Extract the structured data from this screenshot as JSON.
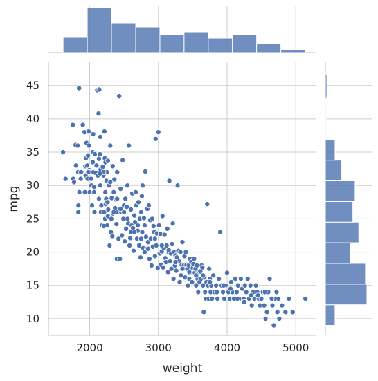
{
  "chart_data": {
    "type": "scatter",
    "title": "",
    "xlabel": "weight",
    "ylabel": "mpg",
    "xlim": [
      1400,
      5300
    ],
    "ylim": [
      7.5,
      48.5
    ],
    "xticks": [
      "2000",
      "3000",
      "4000",
      "5000"
    ],
    "yticks": [
      "10",
      "15",
      "20",
      "25",
      "30",
      "35",
      "40",
      "45"
    ],
    "grid": true,
    "colors": {
      "marker": "#4c72b0",
      "bar": "#4c72b0"
    },
    "marginal_x_histogram": {
      "bin_edges": [
        1613,
        1965,
        2317,
        2670,
        3022,
        3374,
        3726,
        4078,
        4430,
        4782,
        5140
      ],
      "counts": [
        22,
        65,
        43,
        37,
        26,
        29,
        21,
        26,
        13,
        4
      ]
    },
    "marginal_y_histogram": {
      "bin_edges": [
        9,
        12.1,
        15.2,
        18.3,
        21.4,
        24.5,
        27.6,
        30.7,
        33.8,
        36.9,
        40.0,
        43.1,
        46.6
      ],
      "counts": [
        13,
        56,
        54,
        34,
        45,
        37,
        40,
        22,
        13,
        1,
        1,
        2
      ]
    },
    "points": [
      [
        1613,
        35
      ],
      [
        1649,
        31
      ],
      [
        1755,
        39.1
      ],
      [
        1760,
        31
      ],
      [
        1773,
        30.5
      ],
      [
        1795,
        36.1
      ],
      [
        1800,
        33
      ],
      [
        1825,
        36
      ],
      [
        1834,
        32
      ],
      [
        1835,
        26
      ],
      [
        1836,
        27
      ],
      [
        1845,
        44.6
      ],
      [
        1850,
        29
      ],
      [
        1870,
        31
      ],
      [
        1875,
        32
      ],
      [
        1900,
        39.1
      ],
      [
        1925,
        38
      ],
      [
        1930,
        29
      ],
      [
        1937,
        32.9
      ],
      [
        1940,
        31.5
      ],
      [
        1945,
        34.1
      ],
      [
        1955,
        36.4
      ],
      [
        1965,
        33
      ],
      [
        1970,
        31
      ],
      [
        1975,
        34.5
      ],
      [
        1985,
        38.1
      ],
      [
        1990,
        36
      ],
      [
        1995,
        32.3
      ],
      [
        2000,
        29
      ],
      [
        2003,
        32
      ],
      [
        2020,
        31
      ],
      [
        2025,
        30
      ],
      [
        2035,
        27
      ],
      [
        2045,
        35
      ],
      [
        2050,
        37.7
      ],
      [
        2055,
        32
      ],
      [
        2065,
        29.8
      ],
      [
        2070,
        26
      ],
      [
        2075,
        34.7
      ],
      [
        2085,
        31.9
      ],
      [
        2100,
        33
      ],
      [
        2110,
        44.3
      ],
      [
        2120,
        31.5
      ],
      [
        2130,
        40.8
      ],
      [
        2135,
        28
      ],
      [
        2140,
        44.4
      ],
      [
        2145,
        30
      ],
      [
        2150,
        34.7
      ],
      [
        2155,
        37.3
      ],
      [
        2160,
        32.4
      ],
      [
        2164,
        26
      ],
      [
        2170,
        27
      ],
      [
        2180,
        24
      ],
      [
        2190,
        32.8
      ],
      [
        2200,
        31.5
      ],
      [
        2205,
        23.9
      ],
      [
        2210,
        26
      ],
      [
        2215,
        38.1
      ],
      [
        2220,
        34.1
      ],
      [
        2225,
        25
      ],
      [
        2228,
        29
      ],
      [
        2230,
        33.5
      ],
      [
        2234,
        27.2
      ],
      [
        2240,
        28
      ],
      [
        2245,
        30.7
      ],
      [
        2250,
        32
      ],
      [
        2255,
        24
      ],
      [
        2260,
        27.5
      ],
      [
        2265,
        25.4
      ],
      [
        2270,
        26.4
      ],
      [
        2280,
        30
      ],
      [
        2290,
        21
      ],
      [
        2300,
        36
      ],
      [
        2310,
        23
      ],
      [
        2315,
        25
      ],
      [
        2320,
        28.1
      ],
      [
        2330,
        22.4
      ],
      [
        2335,
        32.9
      ],
      [
        2340,
        25.8
      ],
      [
        2350,
        29
      ],
      [
        2360,
        30.9
      ],
      [
        2370,
        26.6
      ],
      [
        2380,
        27.9
      ],
      [
        2390,
        24.2
      ],
      [
        2395,
        19
      ],
      [
        2400,
        32
      ],
      [
        2410,
        26
      ],
      [
        2420,
        22
      ],
      [
        2430,
        43.4
      ],
      [
        2440,
        19
      ],
      [
        2450,
        29.5
      ],
      [
        2460,
        26
      ],
      [
        2470,
        22.5
      ],
      [
        2480,
        33.8
      ],
      [
        2490,
        25
      ],
      [
        2500,
        27
      ],
      [
        2510,
        21.6
      ],
      [
        2520,
        28
      ],
      [
        2530,
        23.5
      ],
      [
        2540,
        26.8
      ],
      [
        2550,
        30
      ],
      [
        2560,
        24.3
      ],
      [
        2570,
        36
      ],
      [
        2580,
        21
      ],
      [
        2590,
        22.1
      ],
      [
        2600,
        26.4
      ],
      [
        2610,
        24
      ],
      [
        2620,
        28.8
      ],
      [
        2630,
        23.6
      ],
      [
        2640,
        20.2
      ],
      [
        2650,
        25.5
      ],
      [
        2660,
        24.5
      ],
      [
        2670,
        29
      ],
      [
        2680,
        27
      ],
      [
        2690,
        22
      ],
      [
        2700,
        23.2
      ],
      [
        2710,
        27.5
      ],
      [
        2720,
        21
      ],
      [
        2730,
        25
      ],
      [
        2740,
        19.2
      ],
      [
        2750,
        26
      ],
      [
        2760,
        28.4
      ],
      [
        2765,
        23
      ],
      [
        2770,
        30
      ],
      [
        2780,
        20.6
      ],
      [
        2790,
        25.1
      ],
      [
        2800,
        24
      ],
      [
        2810,
        32.1
      ],
      [
        2820,
        22.3
      ],
      [
        2830,
        20.5
      ],
      [
        2840,
        26.5
      ],
      [
        2850,
        21.5
      ],
      [
        2860,
        27
      ],
      [
        2870,
        19
      ],
      [
        2880,
        24.8
      ],
      [
        2890,
        22
      ],
      [
        2900,
        18
      ],
      [
        2910,
        25
      ],
      [
        2920,
        20.8
      ],
      [
        2930,
        23.9
      ],
      [
        2940,
        23
      ],
      [
        2950,
        19.4
      ],
      [
        2960,
        37
      ],
      [
        2970,
        21
      ],
      [
        2980,
        22.8
      ],
      [
        2990,
        17.6
      ],
      [
        3000,
        38
      ],
      [
        3010,
        24
      ],
      [
        3020,
        19.8
      ],
      [
        3030,
        22.7
      ],
      [
        3040,
        18.1
      ],
      [
        3050,
        20.1
      ],
      [
        3060,
        25.4
      ],
      [
        3070,
        17.7
      ],
      [
        3080,
        20.6
      ],
      [
        3090,
        22.6
      ],
      [
        3100,
        19.1
      ],
      [
        3110,
        18.5
      ],
      [
        3120,
        21
      ],
      [
        3130,
        23.5
      ],
      [
        3140,
        17
      ],
      [
        3150,
        20
      ],
      [
        3160,
        30.7
      ],
      [
        3170,
        18.6
      ],
      [
        3180,
        19.8
      ],
      [
        3190,
        17.5
      ],
      [
        3200,
        21.2
      ],
      [
        3210,
        24.3
      ],
      [
        3220,
        16
      ],
      [
        3230,
        20
      ],
      [
        3240,
        18
      ],
      [
        3250,
        19.5
      ],
      [
        3260,
        17.2
      ],
      [
        3270,
        19.2
      ],
      [
        3280,
        30
      ],
      [
        3290,
        20.2
      ],
      [
        3300,
        18.6
      ],
      [
        3310,
        15.5
      ],
      [
        3320,
        20
      ],
      [
        3330,
        16.5
      ],
      [
        3340,
        18.1
      ],
      [
        3350,
        21.5
      ],
      [
        3360,
        17.6
      ],
      [
        3370,
        18
      ],
      [
        3380,
        19.4
      ],
      [
        3390,
        16.2
      ],
      [
        3400,
        20
      ],
      [
        3410,
        18.1
      ],
      [
        3420,
        17.5
      ],
      [
        3430,
        15
      ],
      [
        3440,
        18
      ],
      [
        3450,
        16
      ],
      [
        3460,
        19
      ],
      [
        3470,
        17
      ],
      [
        3480,
        18.5
      ],
      [
        3490,
        15.5
      ],
      [
        3500,
        17.6
      ],
      [
        3510,
        18.2
      ],
      [
        3520,
        19
      ],
      [
        3530,
        16.9
      ],
      [
        3540,
        17.5
      ],
      [
        3550,
        15
      ],
      [
        3560,
        18
      ],
      [
        3570,
        16
      ],
      [
        3580,
        14
      ],
      [
        3590,
        17
      ],
      [
        3600,
        15.5
      ],
      [
        3610,
        17.1
      ],
      [
        3620,
        16
      ],
      [
        3630,
        18
      ],
      [
        3640,
        17.7
      ],
      [
        3650,
        15
      ],
      [
        3660,
        11
      ],
      [
        3670,
        16.2
      ],
      [
        3680,
        14
      ],
      [
        3690,
        13
      ],
      [
        3700,
        15.5
      ],
      [
        3710,
        27.2
      ],
      [
        3720,
        15
      ],
      [
        3730,
        13
      ],
      [
        3740,
        17.5
      ],
      [
        3750,
        16
      ],
      [
        3760,
        14
      ],
      [
        3770,
        15
      ],
      [
        3780,
        13
      ],
      [
        3800,
        16.5
      ],
      [
        3820,
        14
      ],
      [
        3840,
        15
      ],
      [
        3860,
        13
      ],
      [
        3880,
        16
      ],
      [
        3900,
        23
      ],
      [
        3920,
        15
      ],
      [
        3940,
        14
      ],
      [
        3960,
        13
      ],
      [
        3980,
        15
      ],
      [
        4000,
        16.9
      ],
      [
        4020,
        14
      ],
      [
        4040,
        13
      ],
      [
        4060,
        15.5
      ],
      [
        4080,
        14
      ],
      [
        4100,
        13
      ],
      [
        4120,
        16
      ],
      [
        4140,
        14
      ],
      [
        4160,
        15
      ],
      [
        4180,
        13
      ],
      [
        4200,
        16
      ],
      [
        4220,
        14.5
      ],
      [
        4240,
        13
      ],
      [
        4260,
        15
      ],
      [
        4280,
        14
      ],
      [
        4300,
        16
      ],
      [
        4320,
        13
      ],
      [
        4340,
        15
      ],
      [
        4360,
        12
      ],
      [
        4380,
        14
      ],
      [
        4400,
        13
      ],
      [
        4420,
        15
      ],
      [
        4440,
        14
      ],
      [
        4460,
        13
      ],
      [
        4480,
        12
      ],
      [
        4499,
        13
      ],
      [
        4520,
        14
      ],
      [
        4540,
        12
      ],
      [
        4560,
        10
      ],
      [
        4580,
        11
      ],
      [
        4600,
        14
      ],
      [
        4620,
        16
      ],
      [
        4640,
        13
      ],
      [
        4660,
        12
      ],
      [
        4680,
        9
      ],
      [
        4700,
        13
      ],
      [
        4720,
        14
      ],
      [
        4732,
        11
      ],
      [
        4746,
        13
      ],
      [
        4760,
        10
      ],
      [
        4800,
        12
      ],
      [
        4850,
        11
      ],
      [
        4900,
        13
      ],
      [
        4955,
        11
      ],
      [
        5140,
        13
      ],
      [
        2065,
        29
      ],
      [
        2155,
        30
      ],
      [
        2200,
        32
      ],
      [
        2300,
        30.5
      ],
      [
        2135,
        34
      ],
      [
        1980,
        32
      ],
      [
        2045,
        33.5
      ],
      [
        2150,
        31.8
      ],
      [
        2265,
        33.7
      ],
      [
        2350,
        26
      ],
      [
        2400,
        28
      ],
      [
        2450,
        26.5
      ],
      [
        2500,
        26
      ],
      [
        2550,
        25
      ],
      [
        2600,
        23
      ],
      [
        2650,
        23
      ],
      [
        2700,
        24
      ],
      [
        2750,
        22
      ],
      [
        2800,
        20
      ],
      [
        2850,
        20.5
      ],
      [
        2950,
        22
      ],
      [
        3050,
        21
      ],
      [
        3150,
        20.3
      ],
      [
        3250,
        18.5
      ],
      [
        3350,
        17.5
      ],
      [
        3450,
        17
      ],
      [
        3550,
        16.5
      ],
      [
        3650,
        16.5
      ],
      [
        3750,
        15.5
      ],
      [
        3850,
        14
      ],
      [
        3950,
        15
      ],
      [
        4050,
        14.5
      ],
      [
        4150,
        13
      ],
      [
        4250,
        12.5
      ],
      [
        4350,
        13.5
      ],
      [
        4450,
        13.5
      ],
      [
        4550,
        14
      ],
      [
        4650,
        13
      ]
    ]
  }
}
